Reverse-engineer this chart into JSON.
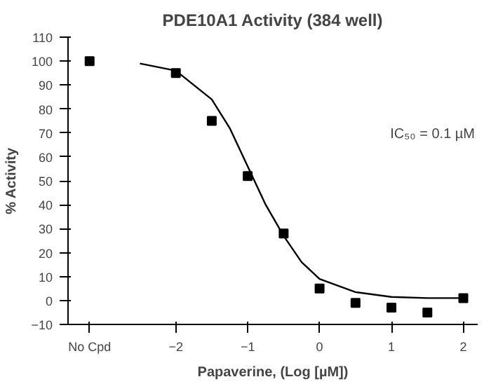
{
  "chart_data": {
    "type": "scatter",
    "title": "PDE10A1 Activity (384 well)",
    "xlabel": "Papaverine, (Log [µM])",
    "ylabel": "% Activity",
    "annotations": [
      "IC₅₀ = 0.1 µM"
    ],
    "series": [
      {
        "color": "#000000",
        "marker": "square",
        "x": [
          -3.2
        ],
        "values": [
          100
        ]
      },
      {
        "color": "#000000",
        "marker": "square",
        "x": [
          -2,
          -1.5,
          -1,
          -0.5,
          0,
          0.5,
          1,
          1.5,
          2
        ],
        "values": [
          95,
          75,
          52,
          28,
          5,
          -1,
          -3,
          -5,
          1
        ]
      },
      {
        "type": "line",
        "color": "#000000",
        "x": [
          -2.5,
          -2,
          -1.5,
          -1.25,
          -1,
          -0.75,
          -0.5,
          -0.25,
          0,
          0.5,
          1,
          1.5,
          2
        ],
        "values": [
          99,
          96,
          84,
          72,
          56,
          40,
          27,
          16,
          9,
          3.5,
          1.5,
          1,
          1
        ]
      }
    ],
    "xlim": [
      -3.5,
      2.2
    ],
    "xticks": [
      {
        "value": -3.2,
        "label": "No Cpd"
      },
      -2,
      -1,
      0,
      1,
      2
    ],
    "ylim": [
      -10,
      110
    ],
    "yticks": [
      -10,
      0,
      10,
      20,
      30,
      40,
      50,
      60,
      70,
      80,
      90,
      100,
      110
    ],
    "grid": false
  }
}
